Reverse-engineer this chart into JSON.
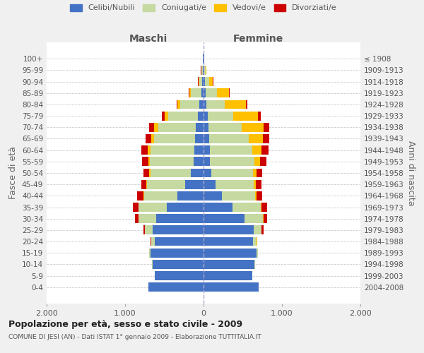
{
  "age_groups": [
    "0-4",
    "5-9",
    "10-14",
    "15-19",
    "20-24",
    "25-29",
    "30-34",
    "35-39",
    "40-44",
    "45-49",
    "50-54",
    "55-59",
    "60-64",
    "65-69",
    "70-74",
    "75-79",
    "80-84",
    "85-89",
    "90-94",
    "95-99",
    "100+"
  ],
  "birth_years": [
    "2004-2008",
    "1999-2003",
    "1994-1998",
    "1989-1993",
    "1984-1988",
    "1979-1983",
    "1974-1978",
    "1969-1973",
    "1964-1968",
    "1959-1963",
    "1954-1958",
    "1949-1953",
    "1944-1948",
    "1939-1943",
    "1934-1938",
    "1929-1933",
    "1924-1928",
    "1919-1923",
    "1914-1918",
    "1909-1913",
    "≤ 1908"
  ],
  "male": {
    "celibe": [
      700,
      620,
      650,
      680,
      620,
      650,
      600,
      470,
      330,
      230,
      160,
      125,
      120,
      110,
      95,
      70,
      50,
      30,
      15,
      10,
      5
    ],
    "coniugato": [
      1,
      2,
      5,
      15,
      50,
      100,
      230,
      360,
      430,
      490,
      520,
      560,
      560,
      520,
      480,
      380,
      250,
      130,
      40,
      15,
      5
    ],
    "vedovo": [
      0,
      0,
      0,
      0,
      1,
      1,
      2,
      3,
      5,
      10,
      15,
      20,
      30,
      35,
      55,
      50,
      30,
      20,
      10,
      5,
      2
    ],
    "divorziato": [
      0,
      0,
      0,
      2,
      8,
      15,
      40,
      70,
      80,
      65,
      70,
      75,
      80,
      70,
      60,
      30,
      15,
      10,
      5,
      2,
      1
    ]
  },
  "female": {
    "nubile": [
      700,
      620,
      650,
      680,
      630,
      640,
      520,
      370,
      230,
      150,
      100,
      85,
      80,
      70,
      60,
      50,
      40,
      30,
      20,
      10,
      5
    ],
    "coniugata": [
      1,
      2,
      5,
      15,
      50,
      100,
      240,
      360,
      430,
      490,
      530,
      560,
      540,
      510,
      430,
      330,
      230,
      140,
      50,
      15,
      5
    ],
    "vedova": [
      0,
      0,
      0,
      0,
      1,
      2,
      5,
      8,
      15,
      30,
      50,
      80,
      120,
      180,
      280,
      310,
      270,
      150,
      50,
      10,
      2
    ],
    "divorziata": [
      0,
      0,
      0,
      2,
      8,
      20,
      45,
      75,
      75,
      65,
      70,
      80,
      90,
      75,
      65,
      40,
      20,
      15,
      5,
      2,
      1
    ]
  },
  "colors": {
    "celibe": "#4472c4",
    "coniugato": "#c5d9a0",
    "vedovo": "#ffc000",
    "divorziato": "#cc0000"
  },
  "legend_labels": [
    "Celibi/Nubili",
    "Coniugati/e",
    "Vedovi/e",
    "Divorziati/e"
  ],
  "title": "Popolazione per età, sesso e stato civile - 2009",
  "subtitle": "COMUNE DI JESI (AN) - Dati ISTAT 1° gennaio 2009 - Elaborazione TUTTITALIA.IT",
  "ylabel_left": "Fasce di età",
  "ylabel_right": "Anni di nascita",
  "xlabel_male": "Maschi",
  "xlabel_female": "Femmine",
  "xlim": 2000,
  "bg_color": "#f0f0f0",
  "plot_bg": "#ffffff"
}
